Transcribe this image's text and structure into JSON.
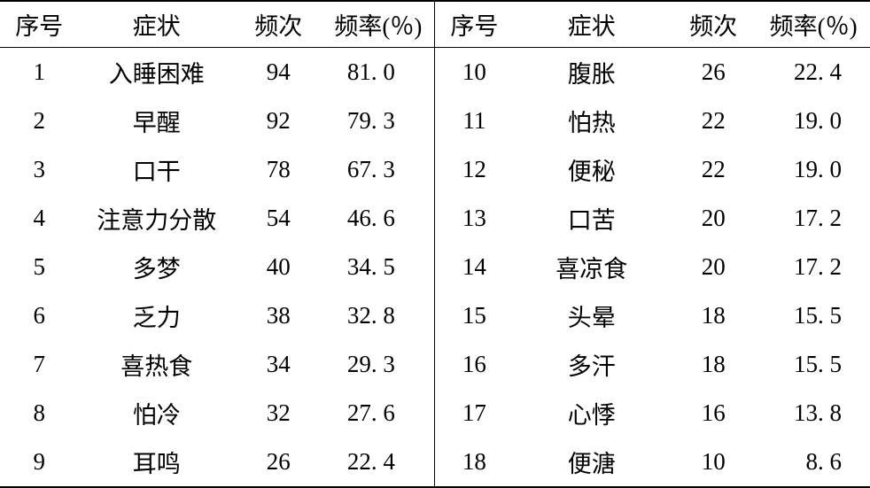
{
  "table": {
    "type": "table",
    "background_color": "#ffffff",
    "text_color": "#000000",
    "border_color": "#000000",
    "font_family": "KaiTi",
    "font_size": 27,
    "headers": {
      "seq": "序号",
      "symptom": "症状",
      "freq": "频次",
      "rate": "频率(％)"
    },
    "left_rows": [
      {
        "seq": "1",
        "symptom": "入睡困难",
        "freq": "94",
        "rate": "81. 0"
      },
      {
        "seq": "2",
        "symptom": "早醒",
        "freq": "92",
        "rate": "79. 3"
      },
      {
        "seq": "3",
        "symptom": "口干",
        "freq": "78",
        "rate": "67. 3"
      },
      {
        "seq": "4",
        "symptom": "注意力分散",
        "freq": "54",
        "rate": "46. 6"
      },
      {
        "seq": "5",
        "symptom": "多梦",
        "freq": "40",
        "rate": "34. 5"
      },
      {
        "seq": "6",
        "symptom": "乏力",
        "freq": "38",
        "rate": "32. 8"
      },
      {
        "seq": "7",
        "symptom": "喜热食",
        "freq": "34",
        "rate": "29. 3"
      },
      {
        "seq": "8",
        "symptom": "怕冷",
        "freq": "32",
        "rate": "27. 6"
      },
      {
        "seq": "9",
        "symptom": "耳鸣",
        "freq": "26",
        "rate": "22. 4"
      }
    ],
    "right_rows": [
      {
        "seq": "10",
        "symptom": "腹胀",
        "freq": "26",
        "rate": "22. 4"
      },
      {
        "seq": "11",
        "symptom": "怕热",
        "freq": "22",
        "rate": "19. 0"
      },
      {
        "seq": "12",
        "symptom": "便秘",
        "freq": "22",
        "rate": "19. 0"
      },
      {
        "seq": "13",
        "symptom": "口苦",
        "freq": "20",
        "rate": "17. 2"
      },
      {
        "seq": "14",
        "symptom": "喜凉食",
        "freq": "20",
        "rate": "17. 2"
      },
      {
        "seq": "15",
        "symptom": "头晕",
        "freq": "18",
        "rate": "15. 5"
      },
      {
        "seq": "16",
        "symptom": "多汗",
        "freq": "18",
        "rate": "15. 5"
      },
      {
        "seq": "17",
        "symptom": "心悸",
        "freq": "16",
        "rate": "13. 8"
      },
      {
        "seq": "18",
        "symptom": "便溏",
        "freq": "10",
        "rate": "8. 6"
      }
    ]
  }
}
